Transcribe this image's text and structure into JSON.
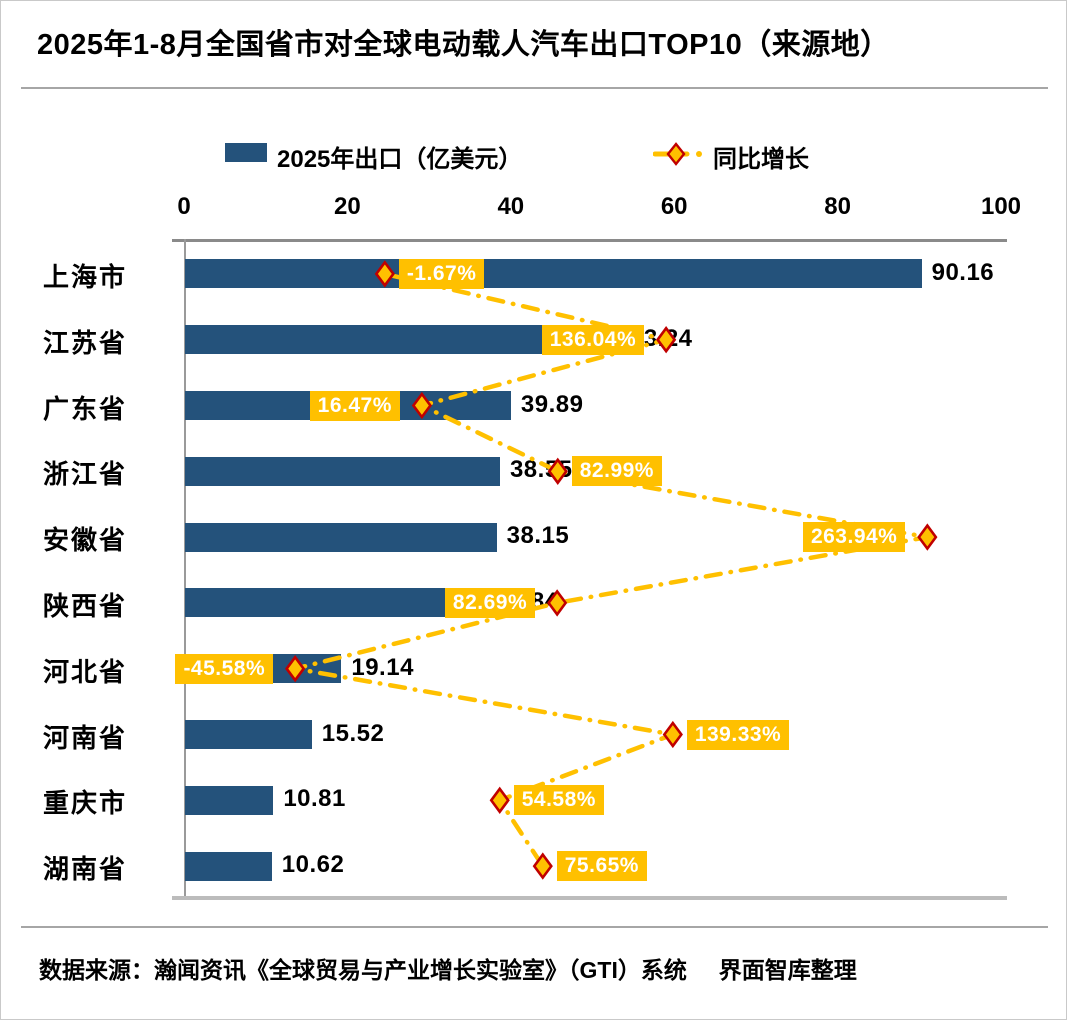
{
  "header": {
    "title": "2025年1-8月全国省市对全球电动载人汽车出口TOP10（来源地）"
  },
  "legend": {
    "bar_label": "2025年出口（亿美元）",
    "line_label": "同比增长"
  },
  "footer": {
    "source": "数据来源：瀚闻资讯《全球贸易与产业增长实验室》（GTI）系统     界面智库整理"
  },
  "colors": {
    "bar": "#24527b",
    "accent_yellow": "#ffc000",
    "diamond_border": "#c00000",
    "growth_label_text": "#ffffff",
    "axis_gray": "#8a8a8a"
  },
  "chart_data": {
    "type": "bar",
    "orientation": "horizontal",
    "title": "2025年1-8月全国省市对全球电动载人汽车出口TOP10（来源地）",
    "categories": [
      "上海市",
      "江苏省",
      "广东省",
      "浙江省",
      "安徽省",
      "陕西省",
      "河北省",
      "河南省",
      "重庆市",
      "湖南省"
    ],
    "series": [
      {
        "name": "2025年出口（亿美元）",
        "type": "bar",
        "values": [
          90.16,
          53.24,
          39.89,
          38.55,
          38.15,
          36.84,
          19.14,
          15.52,
          10.81,
          10.62
        ],
        "value_labels": [
          "90.16",
          "53.24",
          "39.89",
          "38.55",
          "38.15",
          "36.84",
          "19.14",
          "15.52",
          "10.81",
          "10.62"
        ]
      },
      {
        "name": "同比增长",
        "type": "line",
        "unit": "%",
        "values": [
          -1.67,
          136.04,
          16.47,
          82.99,
          263.94,
          82.69,
          -45.58,
          139.33,
          54.58,
          75.65
        ],
        "labels": [
          "-1.67%",
          "136.04%",
          "16.47%",
          "82.99%",
          "263.94%",
          "82.69%",
          "-45.58%",
          "139.33%",
          "54.58%",
          "75.65%"
        ],
        "label_side": [
          "right",
          "left",
          "left",
          "right",
          "left",
          "left",
          "left",
          "right",
          "right",
          "right"
        ]
      }
    ],
    "x_axis_top": {
      "ticks": [
        0,
        20,
        40,
        60,
        80,
        100
      ],
      "range": [
        0,
        100
      ]
    },
    "secondary_axis": {
      "range": [
        -100,
        300
      ],
      "visible": false
    },
    "legend_position": "top",
    "grid": false,
    "line_style": "dash-dot",
    "marker": "diamond"
  }
}
